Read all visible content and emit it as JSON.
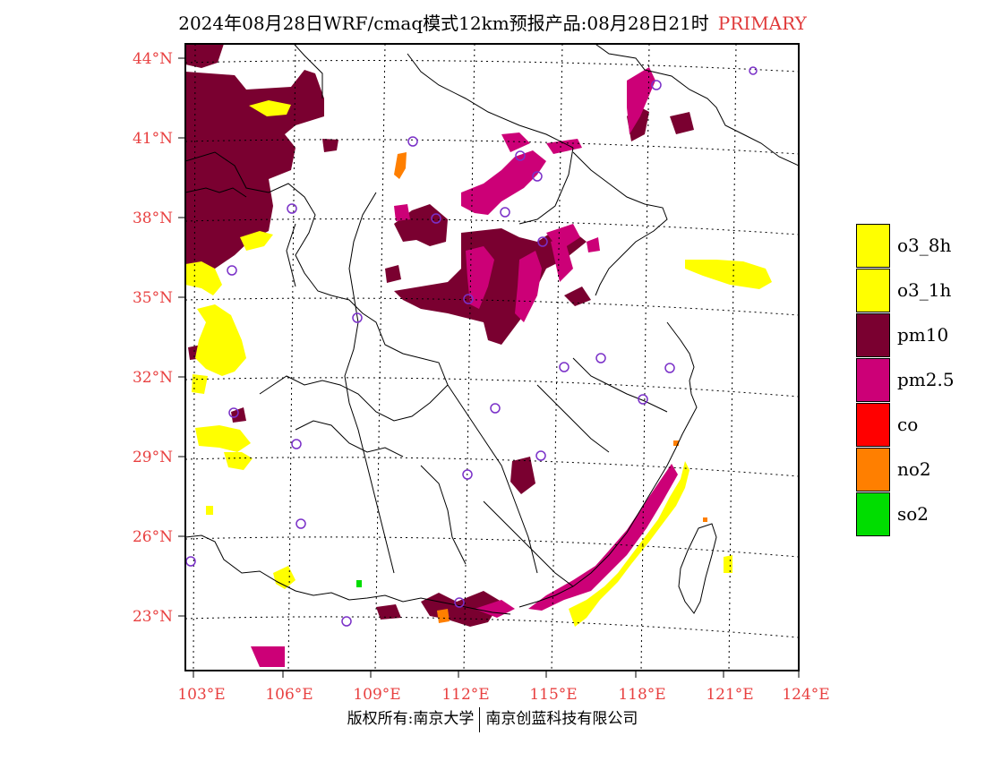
{
  "title": {
    "main": "2024年08月28日WRF/cmaq模式12km预报产品:08月28日21时",
    "sub": "PRIMARY"
  },
  "axes": {
    "lat_labels": [
      "44°N",
      "41°N",
      "38°N",
      "35°N",
      "32°N",
      "29°N",
      "26°N",
      "23°N"
    ],
    "lon_labels": [
      "103°E",
      "106°E",
      "109°E",
      "112°E",
      "115°E",
      "118°E",
      "121°E",
      "124°E"
    ]
  },
  "legend": {
    "items": [
      {
        "label": "o3_8h",
        "color": "#ffff00"
      },
      {
        "label": "o3_1h",
        "color": "#ffff00"
      },
      {
        "label": "pm10",
        "color": "#7a0030"
      },
      {
        "label": "pm2.5",
        "color": "#cc0077"
      },
      {
        "label": "co",
        "color": "#ff0000"
      },
      {
        "label": "no2",
        "color": "#ff7f00"
      },
      {
        "label": "so2",
        "color": "#00dd00"
      }
    ]
  },
  "footer": {
    "left": "版权所有:南京大学",
    "right": "南京创蓝科技有限公司"
  }
}
